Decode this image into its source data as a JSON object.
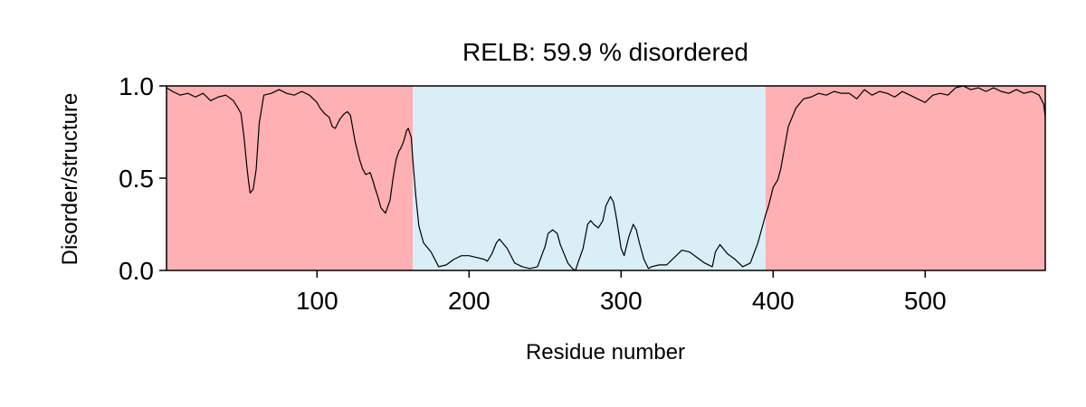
{
  "chart_data": {
    "type": "line",
    "title": "RELB: 59.9 % disordered",
    "xlabel": "Residue number",
    "ylabel": "Disorder/structure",
    "xlim": [
      1,
      579
    ],
    "ylim": [
      0,
      1
    ],
    "x_ticks": [
      100,
      200,
      300,
      400,
      500
    ],
    "x_tick_labels": [
      "100",
      "200",
      "300",
      "400",
      "500"
    ],
    "y_ticks": [
      0,
      0.5,
      1
    ],
    "y_tick_labels": [
      "0.0",
      "0.5",
      "1.0"
    ],
    "grid": false,
    "legend": "none",
    "regions": [
      {
        "start": 1,
        "end": 163,
        "kind": "disordered",
        "color": "#ffb0b2"
      },
      {
        "start": 163,
        "end": 395,
        "kind": "structured",
        "color": "#d9eef7"
      },
      {
        "start": 395,
        "end": 579,
        "kind": "disordered",
        "color": "#ffb0b2"
      }
    ],
    "line_color": "#000000",
    "series": [
      {
        "x": [
          1,
          5,
          10,
          15,
          20,
          25,
          30,
          35,
          40,
          45,
          48,
          50,
          52,
          54,
          55,
          56,
          58,
          60,
          62,
          65,
          70,
          75,
          80,
          85,
          90,
          95,
          100,
          102,
          105,
          108,
          110,
          112,
          115,
          118,
          120,
          122,
          125,
          128,
          130,
          132,
          135,
          137,
          138,
          140,
          142,
          145,
          148,
          150,
          152,
          154,
          155,
          157,
          159,
          160,
          162,
          163,
          165,
          167,
          170,
          175,
          180,
          185,
          190,
          195,
          200,
          205,
          210,
          212,
          215,
          218,
          220,
          225,
          230,
          235,
          240,
          245,
          250,
          252,
          255,
          258,
          260,
          265,
          268,
          270,
          272,
          275,
          278,
          280,
          282,
          285,
          288,
          290,
          293,
          295,
          297,
          300,
          302,
          305,
          308,
          310,
          312,
          315,
          318,
          320,
          325,
          330,
          335,
          340,
          345,
          350,
          355,
          360,
          362,
          365,
          370,
          375,
          380,
          385,
          390,
          395,
          397,
          400,
          403,
          405,
          410,
          415,
          420,
          425,
          430,
          435,
          440,
          445,
          450,
          455,
          460,
          465,
          470,
          475,
          480,
          485,
          490,
          495,
          500,
          505,
          510,
          515,
          520,
          525,
          530,
          535,
          540,
          545,
          550,
          555,
          560,
          565,
          570,
          575,
          578,
          579
        ],
        "y": [
          0.99,
          0.97,
          0.95,
          0.96,
          0.94,
          0.96,
          0.92,
          0.94,
          0.95,
          0.92,
          0.88,
          0.85,
          0.72,
          0.55,
          0.48,
          0.42,
          0.44,
          0.55,
          0.8,
          0.95,
          0.96,
          0.98,
          0.96,
          0.95,
          0.97,
          0.95,
          0.91,
          0.88,
          0.85,
          0.83,
          0.78,
          0.77,
          0.82,
          0.85,
          0.86,
          0.84,
          0.7,
          0.6,
          0.55,
          0.52,
          0.53,
          0.48,
          0.45,
          0.4,
          0.34,
          0.31,
          0.38,
          0.5,
          0.6,
          0.65,
          0.66,
          0.7,
          0.76,
          0.77,
          0.72,
          0.6,
          0.4,
          0.24,
          0.15,
          0.1,
          0.02,
          0.03,
          0.06,
          0.08,
          0.08,
          0.07,
          0.06,
          0.05,
          0.09,
          0.15,
          0.17,
          0.12,
          0.04,
          0.02,
          0.01,
          0.02,
          0.13,
          0.2,
          0.22,
          0.2,
          0.14,
          0.04,
          0.01,
          0.0,
          0.05,
          0.12,
          0.25,
          0.27,
          0.25,
          0.23,
          0.27,
          0.35,
          0.4,
          0.37,
          0.28,
          0.12,
          0.08,
          0.18,
          0.25,
          0.22,
          0.15,
          0.06,
          0.01,
          0.02,
          0.03,
          0.03,
          0.07,
          0.11,
          0.1,
          0.07,
          0.04,
          0.02,
          0.1,
          0.14,
          0.09,
          0.06,
          0.02,
          0.04,
          0.15,
          0.3,
          0.35,
          0.45,
          0.49,
          0.55,
          0.78,
          0.88,
          0.93,
          0.94,
          0.96,
          0.95,
          0.97,
          0.96,
          0.96,
          0.93,
          0.98,
          0.95,
          0.97,
          0.96,
          0.94,
          0.97,
          0.95,
          0.93,
          0.91,
          0.95,
          0.96,
          0.95,
          0.99,
          1.0,
          0.98,
          0.99,
          0.97,
          0.99,
          0.97,
          0.96,
          0.98,
          0.96,
          0.97,
          0.95,
          0.9,
          0.83
        ]
      }
    ]
  }
}
